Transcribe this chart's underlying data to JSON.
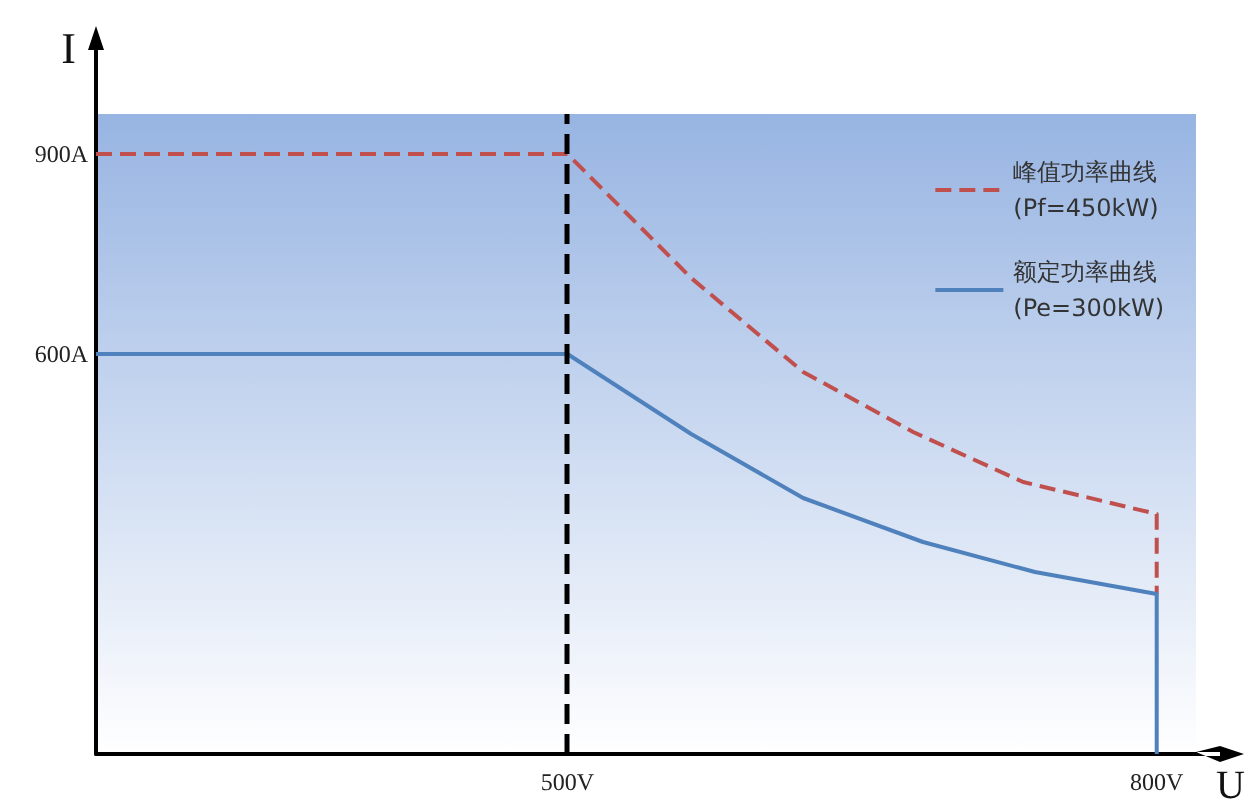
{
  "chart_data": {
    "type": "line",
    "xlabel": "U",
    "ylabel": "I",
    "xlim": [
      260,
      820
    ],
    "ylim": [
      0,
      960
    ],
    "xticks": [
      {
        "value": 500,
        "label": "500V"
      },
      {
        "value": 800,
        "label": "800V"
      }
    ],
    "yticks": [
      {
        "value": 600,
        "label": "600A"
      },
      {
        "value": 900,
        "label": "900A"
      }
    ],
    "grid": false,
    "legend": "top right",
    "marker": "none",
    "series": [
      {
        "name": "峰值功率曲线\n(Pf=450kW)",
        "color": "#c0504d",
        "line_style": "dashed",
        "x": [
          260,
          500,
          563,
          620,
          676,
          732,
          800,
          800
        ],
        "values": [
          900,
          900,
          714,
          573,
          483,
          408,
          360,
          240
        ]
      },
      {
        "name": "额定功率曲线\n(Pe=300kW)",
        "color": "#4f81bd",
        "line_style": "solid",
        "x": [
          260,
          500,
          563,
          620,
          681,
          738,
          800,
          800
        ],
        "values": [
          600,
          600,
          480,
          384,
          318,
          273,
          240,
          0
        ]
      }
    ],
    "ref_lines": [
      {
        "axis": "x",
        "value": 500,
        "color": "#000000",
        "line_style": "dashed"
      }
    ]
  }
}
